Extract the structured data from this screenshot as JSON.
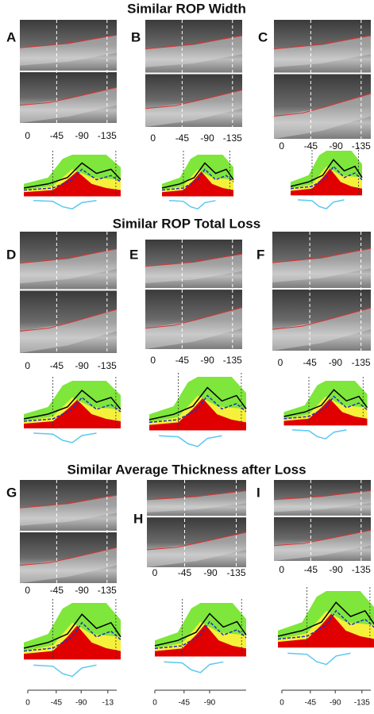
{
  "sections": [
    {
      "title": "Similar ROP Width",
      "panels": [
        {
          "letter": "A",
          "ticks": [
            "0",
            "-45",
            "-90",
            "-135"
          ]
        },
        {
          "letter": "B",
          "ticks": [
            "0",
            "-45",
            "-90",
            "-135"
          ]
        },
        {
          "letter": "C",
          "ticks": [
            "0",
            "-45",
            "-90",
            "-135"
          ]
        }
      ]
    },
    {
      "title": "Similar ROP Total Loss",
      "panels": [
        {
          "letter": "D",
          "ticks": [
            "0",
            "-45",
            "-90",
            "-135"
          ]
        },
        {
          "letter": "E",
          "ticks": [
            "0",
            "-45",
            "-90",
            "-135"
          ]
        },
        {
          "letter": "F",
          "ticks": [
            "0",
            "-45",
            "-90",
            "-135"
          ]
        }
      ]
    },
    {
      "title": "Similar Average Thickness after Loss",
      "panels": [
        {
          "letter": "G",
          "ticks": [
            "0",
            "-45",
            "-90",
            "-135"
          ],
          "bottom_ticks": [
            "0",
            "-45",
            "-90",
            "-13"
          ]
        },
        {
          "letter": "H",
          "ticks": [
            "0",
            "-45",
            "-90",
            "-135"
          ],
          "bottom_ticks": [
            "0",
            "-45",
            "-90"
          ]
        },
        {
          "letter": "I",
          "ticks": [
            "0",
            "-45",
            "-90",
            "-135"
          ],
          "bottom_ticks": [
            "0",
            "-45",
            "-90",
            "-135"
          ]
        }
      ]
    }
  ]
}
